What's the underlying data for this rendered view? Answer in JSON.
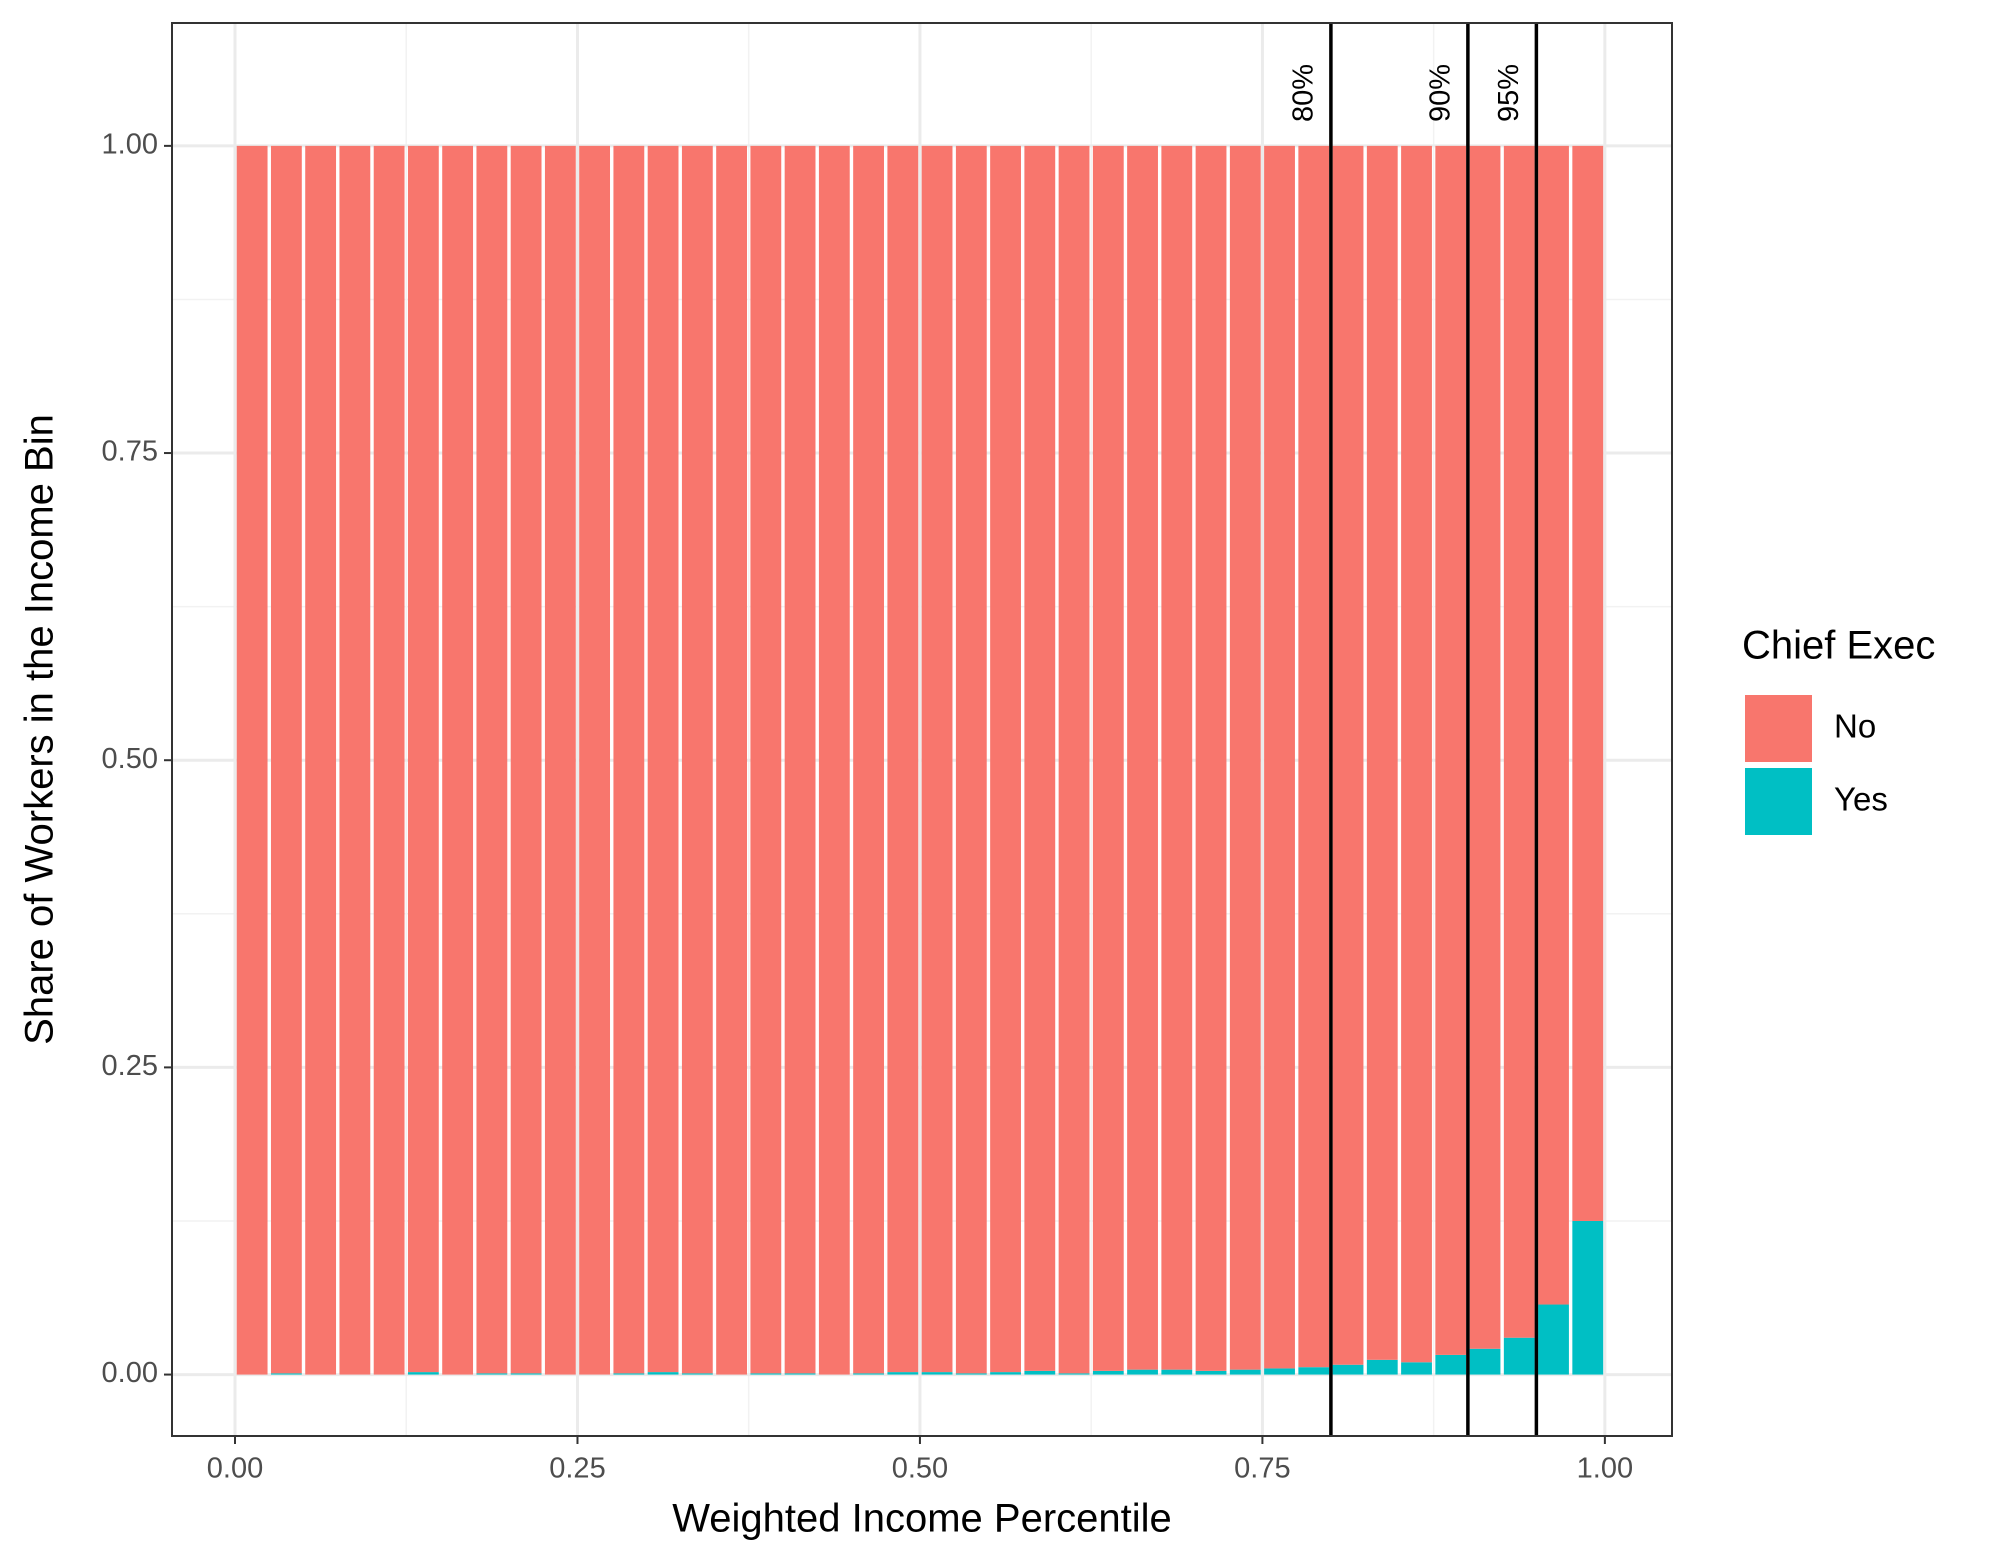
{
  "chart_data": {
    "type": "stacked_bar",
    "x_label": "Weighted Income Percentile",
    "y_label": "Share of Workers in the Income Bin",
    "legend_title": "Chief Exec",
    "legend_position": "right",
    "grid": true,
    "x": [
      0.0125,
      0.0375,
      0.0625,
      0.0875,
      0.1125,
      0.1375,
      0.1625,
      0.1875,
      0.2125,
      0.2375,
      0.2625,
      0.2875,
      0.3125,
      0.3375,
      0.3625,
      0.3875,
      0.4125,
      0.4375,
      0.4625,
      0.4875,
      0.5125,
      0.5375,
      0.5625,
      0.5875,
      0.6125,
      0.6375,
      0.6625,
      0.6875,
      0.7125,
      0.7375,
      0.7625,
      0.7875,
      0.8125,
      0.8375,
      0.8625,
      0.8875,
      0.9125,
      0.9375,
      0.9625,
      0.9875
    ],
    "series": [
      {
        "name": "Yes",
        "color": "#00BFC4",
        "values": [
          0,
          0.001,
          0,
          0,
          0,
          0.002,
          0,
          0.001,
          0.001,
          0,
          0,
          0.001,
          0.002,
          0.001,
          0,
          0.001,
          0.001,
          0,
          0.001,
          0.002,
          0.002,
          0.001,
          0.002,
          0.003,
          0.001,
          0.003,
          0.004,
          0.004,
          0.003,
          0.004,
          0.005,
          0.006,
          0.008,
          0.012,
          0.01,
          0.016,
          0.021,
          0.03,
          0.057,
          0.125
        ]
      },
      {
        "name": "No",
        "color": "#F8766D",
        "values": [
          1,
          0.999,
          1,
          1,
          1,
          0.998,
          1,
          0.999,
          0.999,
          1,
          1,
          0.999,
          0.998,
          0.999,
          1,
          0.999,
          0.999,
          1,
          0.999,
          0.998,
          0.998,
          0.999,
          0.998,
          0.997,
          0.999,
          0.997,
          0.996,
          0.996,
          0.997,
          0.996,
          0.995,
          0.994,
          0.992,
          0.988,
          0.99,
          0.984,
          0.979,
          0.97,
          0.943,
          0.875
        ]
      }
    ],
    "legend_order": [
      "No",
      "Yes"
    ],
    "annotations": [
      {
        "x": 0.8,
        "label": "80%"
      },
      {
        "x": 0.9,
        "label": "90%"
      },
      {
        "x": 0.95,
        "label": "95%"
      }
    ],
    "xlim": [
      -0.046,
      1.049
    ],
    "ylim": [
      -0.05,
      1.1
    ],
    "xticks": [
      {
        "value": 0,
        "label": "0.00"
      },
      {
        "value": 0.25,
        "label": "0.25"
      },
      {
        "value": 0.5,
        "label": "0.50"
      },
      {
        "value": 0.75,
        "label": "0.75"
      },
      {
        "value": 1,
        "label": "1.00"
      }
    ],
    "yticks": [
      {
        "value": 0,
        "label": "0.00"
      },
      {
        "value": 0.25,
        "label": "0.25"
      },
      {
        "value": 0.5,
        "label": "0.50"
      },
      {
        "value": 0.75,
        "label": "0.75"
      },
      {
        "value": 1,
        "label": "1.00"
      }
    ]
  }
}
